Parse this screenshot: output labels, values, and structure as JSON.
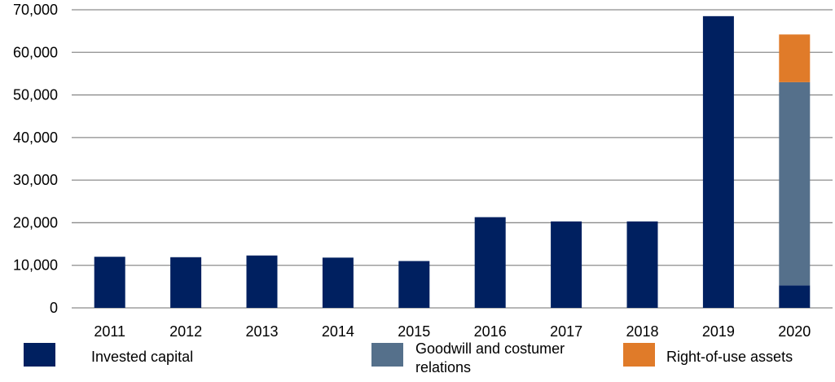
{
  "chart_data": {
    "type": "bar",
    "stacked": true,
    "categories": [
      "2011",
      "2012",
      "2013",
      "2014",
      "2015",
      "2016",
      "2017",
      "2018",
      "2019",
      "2020"
    ],
    "series": [
      {
        "name": "Invested capital",
        "color": "#002060",
        "values": [
          12000,
          11900,
          12300,
          11800,
          11000,
          21300,
          20300,
          20300,
          68500,
          5300
        ]
      },
      {
        "name": "Goodwill and costumer relations",
        "color": "#55708b",
        "values": [
          0,
          0,
          0,
          0,
          0,
          0,
          0,
          0,
          0,
          47700
        ]
      },
      {
        "name": "Right-of-use assets",
        "color": "#e07b29",
        "values": [
          0,
          0,
          0,
          0,
          0,
          0,
          0,
          0,
          0,
          11200
        ]
      }
    ],
    "yticks": [
      "0",
      "10,000",
      "20,000",
      "30,000",
      "40,000",
      "50,000",
      "60,000",
      "70,000"
    ],
    "ylim": [
      0,
      70000
    ],
    "grid": true,
    "legend": "bottom",
    "title": "",
    "xlabel": "",
    "ylabel": ""
  }
}
